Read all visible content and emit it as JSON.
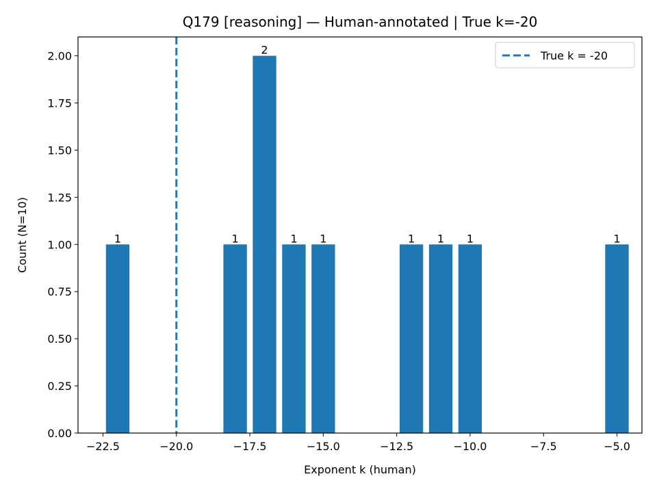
{
  "chart_data": {
    "type": "bar",
    "title": "Q179 [reasoning] — Human-annotated | True k=-20",
    "xlabel": "Exponent k (human)",
    "ylabel": "Count (N=10)",
    "x": [
      -22,
      -18,
      -17,
      -16,
      -15,
      -12,
      -11,
      -10,
      -5
    ],
    "values": [
      1,
      1,
      2,
      1,
      1,
      1,
      1,
      1,
      1
    ],
    "bar_labels": [
      "1",
      "1",
      "2",
      "1",
      "1",
      "1",
      "1",
      "1",
      "1"
    ],
    "bar_width": 0.8,
    "bar_color": "#1f77b4",
    "xlim": [
      -23.35,
      -4.15
    ],
    "ylim": [
      0,
      2.1
    ],
    "xticks": [
      -22.5,
      -20.0,
      -17.5,
      -15.0,
      -12.5,
      -10.0,
      -7.5,
      -5.0
    ],
    "xtick_labels": [
      "−22.5",
      "−20.0",
      "−17.5",
      "−15.0",
      "−12.5",
      "−10.0",
      "−7.5",
      "−5.0"
    ],
    "yticks": [
      0,
      0.25,
      0.5,
      0.75,
      1.0,
      1.25,
      1.5,
      1.75,
      2.0
    ],
    "ytick_labels": [
      "0.00",
      "0.25",
      "0.50",
      "0.75",
      "1.00",
      "1.25",
      "1.50",
      "1.75",
      "2.00"
    ],
    "reference_line": {
      "x": -20,
      "style": "dashed",
      "color": "#1f77b4",
      "label": "True k = -20"
    },
    "legend": {
      "position": "top-right",
      "entries": [
        "True k = -20"
      ]
    },
    "grid": false
  }
}
